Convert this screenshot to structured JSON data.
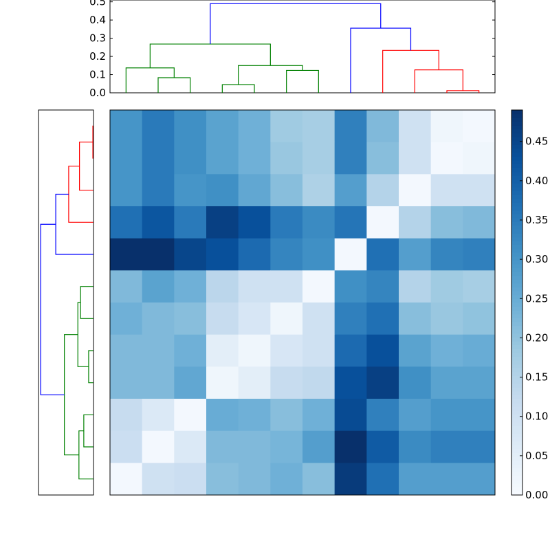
{
  "chart_data": {
    "type": "heatmap",
    "title": "",
    "colormap": "Blues",
    "colorbar": {
      "vmin": 0,
      "vmax": 0.49,
      "ticks": [
        "0.00",
        "0.05",
        "0.10",
        "0.15",
        "0.20",
        "0.25",
        "0.30",
        "0.35",
        "0.40",
        "0.45"
      ],
      "tick_values": [
        0,
        0.05,
        0.1,
        0.15,
        0.2,
        0.25,
        0.3,
        0.35,
        0.4,
        0.45
      ]
    },
    "matrix": [
      [
        0.3,
        0.35,
        0.31,
        0.27,
        0.24,
        0.18,
        0.17,
        0.34,
        0.22,
        0.1,
        0.02,
        0.01
      ],
      [
        0.3,
        0.35,
        0.31,
        0.27,
        0.24,
        0.19,
        0.17,
        0.34,
        0.21,
        0.1,
        0.01,
        0.02
      ],
      [
        0.3,
        0.35,
        0.3,
        0.31,
        0.26,
        0.21,
        0.16,
        0.28,
        0.15,
        0.01,
        0.1,
        0.1
      ],
      [
        0.37,
        0.42,
        0.35,
        0.46,
        0.43,
        0.35,
        0.32,
        0.36,
        0.01,
        0.15,
        0.21,
        0.22
      ],
      [
        0.49,
        0.5,
        0.45,
        0.43,
        0.38,
        0.33,
        0.31,
        0.01,
        0.37,
        0.28,
        0.33,
        0.34
      ],
      [
        0.22,
        0.27,
        0.24,
        0.14,
        0.1,
        0.1,
        0.01,
        0.31,
        0.33,
        0.15,
        0.18,
        0.17
      ],
      [
        0.24,
        0.22,
        0.21,
        0.12,
        0.08,
        0.02,
        0.1,
        0.34,
        0.37,
        0.21,
        0.19,
        0.2
      ],
      [
        0.22,
        0.22,
        0.24,
        0.05,
        0.02,
        0.08,
        0.1,
        0.38,
        0.43,
        0.27,
        0.24,
        0.25
      ],
      [
        0.22,
        0.22,
        0.26,
        0.02,
        0.05,
        0.12,
        0.13,
        0.43,
        0.46,
        0.31,
        0.27,
        0.27
      ],
      [
        0.12,
        0.07,
        0.01,
        0.25,
        0.24,
        0.21,
        0.24,
        0.44,
        0.34,
        0.28,
        0.3,
        0.3
      ],
      [
        0.11,
        0.01,
        0.07,
        0.22,
        0.22,
        0.23,
        0.28,
        0.49,
        0.41,
        0.32,
        0.34,
        0.34
      ],
      [
        0.01,
        0.1,
        0.11,
        0.21,
        0.22,
        0.24,
        0.21,
        0.47,
        0.37,
        0.28,
        0.28,
        0.28
      ]
    ],
    "top_dendrogram": {
      "ylim": [
        0,
        0.51
      ],
      "ticks": [
        "0.0",
        "0.1",
        "0.2",
        "0.3",
        "0.4",
        "0.5"
      ],
      "tick_values": [
        0,
        0.1,
        0.2,
        0.3,
        0.4,
        0.5
      ],
      "merges": [
        {
          "a": "L1",
          "b": "L2",
          "h": 0.083,
          "color": "#008000",
          "id": "A"
        },
        {
          "a": "L0",
          "b": "A",
          "h": 0.137,
          "color": "#008000",
          "id": "B"
        },
        {
          "a": "L3",
          "b": "L4",
          "h": 0.045,
          "color": "#008000",
          "id": "C"
        },
        {
          "a": "L5",
          "b": "L6",
          "h": 0.123,
          "color": "#008000",
          "id": "D"
        },
        {
          "a": "C",
          "b": "D",
          "h": 0.15,
          "color": "#008000",
          "id": "E"
        },
        {
          "a": "B",
          "b": "E",
          "h": 0.268,
          "color": "#008000",
          "id": "F"
        },
        {
          "a": "L10",
          "b": "L11",
          "h": 0.012,
          "color": "#ff0000",
          "id": "G"
        },
        {
          "a": "L9",
          "b": "G",
          "h": 0.126,
          "color": "#ff0000",
          "id": "H"
        },
        {
          "a": "L8",
          "b": "H",
          "h": 0.233,
          "color": "#ff0000",
          "id": "I"
        },
        {
          "a": "L7",
          "b": "I",
          "h": 0.355,
          "color": "#0000ff",
          "id": "J"
        },
        {
          "a": "F",
          "b": "J",
          "h": 0.49,
          "color": "#0000ff",
          "id": "K"
        }
      ]
    },
    "left_dendrogram": {
      "xlim": [
        0,
        0.51
      ],
      "merges": [
        {
          "a": "L0",
          "b": "L1",
          "h": 0.006,
          "color": "#ff0000",
          "id": "A"
        },
        {
          "a": "A",
          "b": "L2",
          "h": 0.13,
          "color": "#ff0000",
          "id": "B"
        },
        {
          "a": "B",
          "b": "L3",
          "h": 0.23,
          "color": "#ff0000",
          "id": "C"
        },
        {
          "a": "C",
          "b": "L4",
          "h": 0.35,
          "color": "#0000ff",
          "id": "D"
        },
        {
          "a": "L5",
          "b": "L6",
          "h": 0.12,
          "color": "#008000",
          "id": "E"
        },
        {
          "a": "L7",
          "b": "L8",
          "h": 0.045,
          "color": "#008000",
          "id": "F"
        },
        {
          "a": "E",
          "b": "F",
          "h": 0.145,
          "color": "#008000",
          "id": "G"
        },
        {
          "a": "L9",
          "b": "L10",
          "h": 0.09,
          "color": "#008000",
          "id": "H"
        },
        {
          "a": "H",
          "b": "L11",
          "h": 0.135,
          "color": "#008000",
          "id": "I"
        },
        {
          "a": "G",
          "b": "I",
          "h": 0.27,
          "color": "#008000",
          "id": "J"
        },
        {
          "a": "D",
          "b": "J",
          "h": 0.49,
          "color": "#0000ff",
          "id": "K"
        }
      ]
    }
  }
}
